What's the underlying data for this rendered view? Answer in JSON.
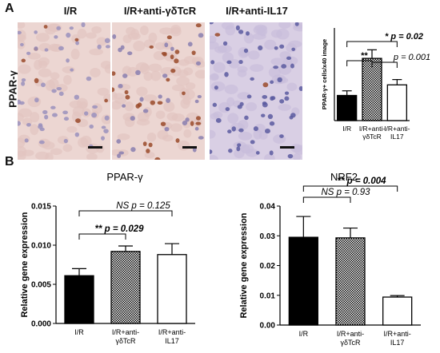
{
  "panel_a": {
    "letter": "A",
    "marker": "PPAR-γ",
    "images": [
      {
        "title": "I/R",
        "stain": "light"
      },
      {
        "title": "I/R+anti-γδTcR",
        "stain": "heavy"
      },
      {
        "title": "I/R+anti-IL17",
        "stain": "blue"
      }
    ]
  },
  "panel_b": {
    "letter": "B"
  },
  "colors": {
    "ir": "#000000",
    "anti_gd": "#7a7a7a",
    "anti_il17": "#ffffff",
    "stain_brown": "#9a4a2a",
    "stain_blue": "#5a5aa0"
  },
  "chart_data": [
    {
      "id": "count",
      "type": "bar",
      "title": "",
      "xlabel": "",
      "ylabel": "PPAR-γ+ cells/x40 image",
      "categories": [
        "I/R",
        "I/R+anti-γδTcR",
        "I/R+anti-IL17"
      ],
      "category_lines": [
        [
          "I/R"
        ],
        [
          "I/R+anti-",
          "γδTcR"
        ],
        [
          "I/R+anti-",
          "IL17"
        ]
      ],
      "values": [
        3.8,
        9.4,
        5.4
      ],
      "errors": [
        0.7,
        1.3,
        0.8
      ],
      "fills": [
        "solid",
        "hatched",
        "open"
      ],
      "ylim": [
        0,
        14
      ],
      "yticks": [],
      "annotations": [
        {
          "from": 0,
          "to": 1,
          "stars": "**",
          "text": ""
        },
        {
          "from": 1,
          "to": 2,
          "stars": "",
          "text": "p = 0.001"
        },
        {
          "from": 0,
          "to": 2,
          "stars": "*",
          "text": "p = 0.02"
        }
      ]
    },
    {
      "id": "ppar",
      "type": "bar",
      "title": "PPAR-γ",
      "xlabel": "",
      "ylabel": "Relative gene expression",
      "categories": [
        "I/R",
        "I/R+anti-γδTcR",
        "I/R+anti-IL17"
      ],
      "category_lines": [
        [
          "I/R"
        ],
        [
          "I/R+anti-",
          "γδTcR"
        ],
        [
          "I/R+anti-",
          "IL17"
        ]
      ],
      "values": [
        0.0061,
        0.0092,
        0.0088
      ],
      "errors": [
        0.0009,
        0.0007,
        0.0014
      ],
      "fills": [
        "solid",
        "hatched",
        "open"
      ],
      "ylim": [
        0,
        0.015
      ],
      "yticks": [
        "0.000",
        "0.005",
        "0.010",
        "0.015"
      ],
      "annotations": [
        {
          "from": 0,
          "to": 1,
          "stars": "**",
          "text": "p = 0.029"
        },
        {
          "from": 0,
          "to": 2,
          "stars": "NS",
          "text": "p = 0.125"
        }
      ]
    },
    {
      "id": "nrf2",
      "type": "bar",
      "title": "NRF2",
      "xlabel": "",
      "ylabel": "Relative gene expression",
      "categories": [
        "I/R",
        "I/R+anti-γδTcR",
        "I/R+anti-IL17"
      ],
      "category_lines": [
        [
          "I/R"
        ],
        [
          "I/R+anti-",
          "γδTcR"
        ],
        [
          "I/R+anti-",
          "IL17"
        ]
      ],
      "values": [
        0.0295,
        0.0293,
        0.0094
      ],
      "errors": [
        0.007,
        0.0033,
        0.0005
      ],
      "fills": [
        "solid",
        "hatched",
        "open"
      ],
      "ylim": [
        0,
        0.04
      ],
      "yticks": [
        "0.00",
        "0.01",
        "0.02",
        "0.03",
        "0.04"
      ],
      "annotations": [
        {
          "from": 0,
          "to": 1,
          "stars": "NS",
          "text": "p = 0.93"
        },
        {
          "from": 0,
          "to": 2,
          "stars": "**",
          "text": "p = 0.004"
        }
      ]
    }
  ]
}
